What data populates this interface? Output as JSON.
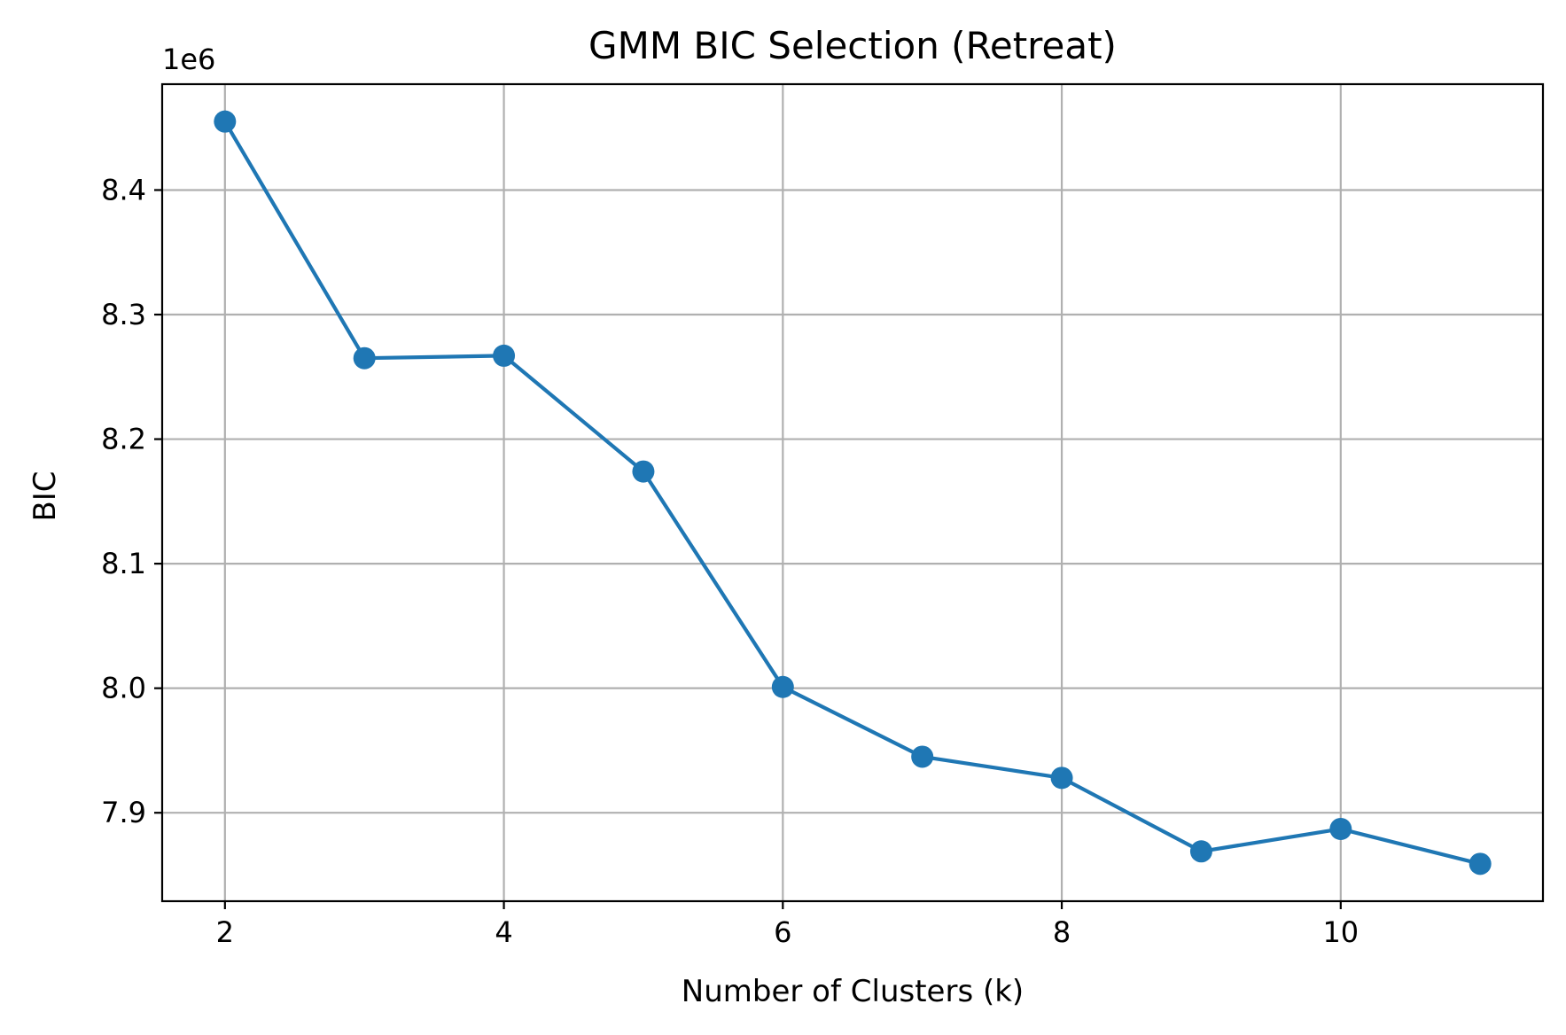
{
  "chart_data": {
    "type": "line",
    "title": "GMM BIC Selection (Retreat)",
    "xlabel": "Number of Clusters (k)",
    "ylabel": "BIC",
    "offset_text": "1e6",
    "x": [
      2,
      3,
      4,
      5,
      6,
      7,
      8,
      9,
      10,
      11
    ],
    "series": [
      {
        "values": [
          8.455,
          8.265,
          8.267,
          8.174,
          8.001,
          7.945,
          7.928,
          7.869,
          7.887,
          7.859
        ],
        "color": "#1f77b4",
        "marker": "circle"
      }
    ],
    "xticks": [
      2,
      4,
      6,
      8,
      10
    ],
    "xtick_labels": [
      "2",
      "4",
      "6",
      "8",
      "10"
    ],
    "yticks": [
      7.9,
      8.0,
      8.1,
      8.2,
      8.3,
      8.4
    ],
    "ytick_labels": [
      "7.9",
      "8.0",
      "8.1",
      "8.2",
      "8.3",
      "8.4"
    ],
    "xlim": [
      1.55,
      11.45
    ],
    "ylim": [
      7.829,
      8.485
    ],
    "grid": true,
    "legend": "none"
  }
}
